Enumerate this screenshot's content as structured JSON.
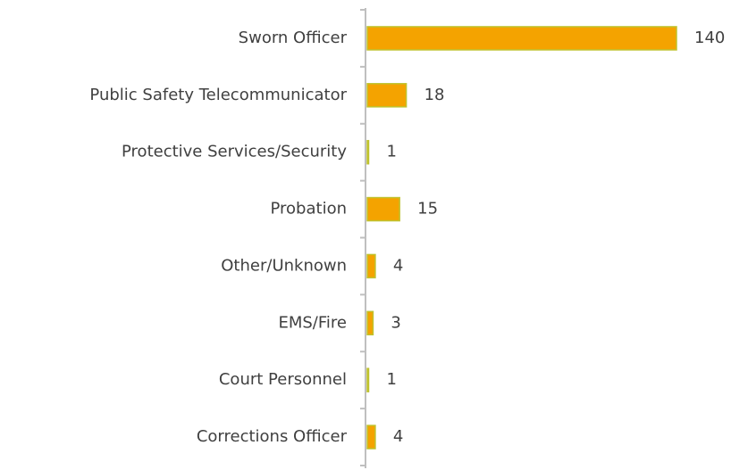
{
  "chart_data": {
    "type": "barh",
    "categories": [
      "Sworn Officer",
      "Public Safety Telecommunicator",
      "Protective Services/Security",
      "Probation",
      "Other/Unknown",
      "EMS/Fire",
      "Court Personnel",
      "Corrections Officer"
    ],
    "values": [
      140,
      18,
      1,
      15,
      4,
      3,
      1,
      4
    ],
    "color": "#f4a300",
    "edge_color": "#bfc22e"
  }
}
